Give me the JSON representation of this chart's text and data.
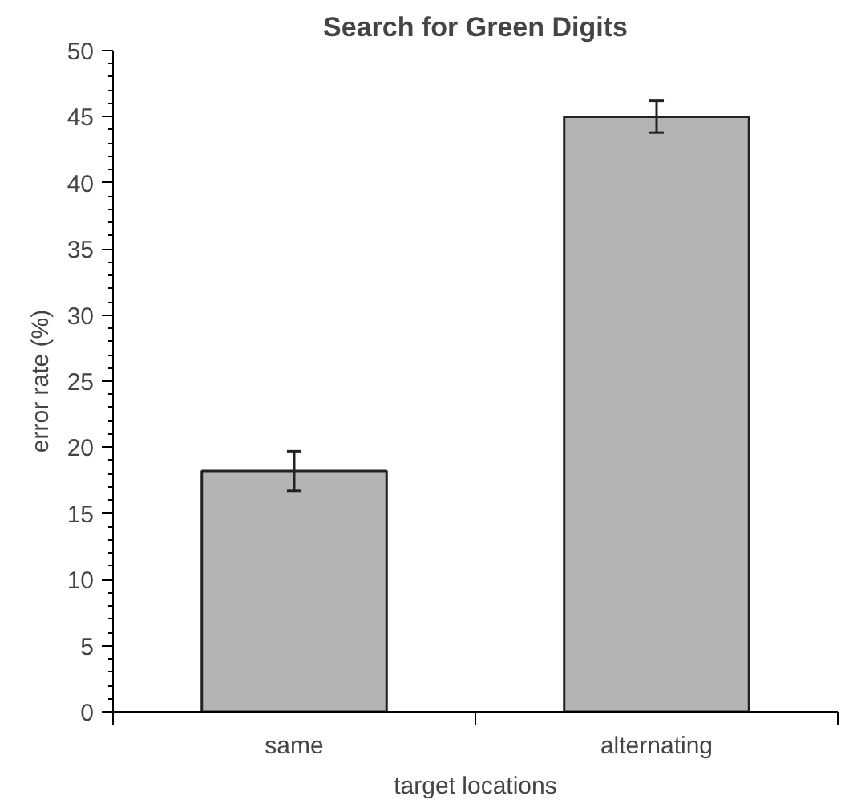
{
  "chart_data": {
    "type": "bar",
    "title": "Search for Green Digits",
    "xlabel": "target locations",
    "ylabel": "error rate (%)",
    "categories": [
      "same",
      "alternating"
    ],
    "values": [
      18.2,
      45.0
    ],
    "errors": [
      1.5,
      1.2
    ],
    "color": "#b4b4b4",
    "ylim": [
      0,
      50
    ],
    "yticks": [
      0,
      5,
      10,
      15,
      20,
      25,
      30,
      35,
      40,
      45,
      50
    ],
    "grid": false
  }
}
